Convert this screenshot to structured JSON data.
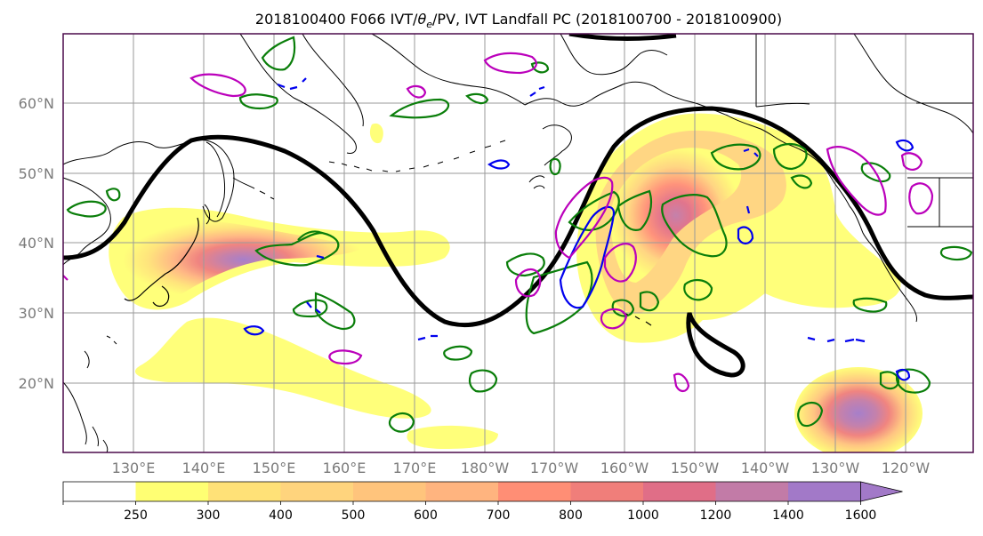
{
  "map": {
    "title": "2018100400 F066 IVT/θe/PV, IVT Landfall PC (2018100700 - 2018100900)",
    "title_parts": {
      "prefix": "2018100400 F066 IVT/",
      "theta": "θ",
      "subscript": "e",
      "suffix": "/PV, IVT Landfall PC (2018100700 - 2018100900)"
    },
    "lat_labels": [
      "60°N",
      "50°N",
      "40°N",
      "30°N",
      "20°N"
    ],
    "lon_labels": [
      "130°E",
      "140°E",
      "150°E",
      "160°E",
      "170°E",
      "180°W",
      "170°W",
      "160°W",
      "150°W",
      "140°W",
      "130°W",
      "120°W"
    ],
    "colors": {
      "plot_border": "#4b0b4b",
      "grid": "#9a9a9a",
      "coast": "#000000",
      "theta_contour": "#000000",
      "green_contour": "#0a7e0a",
      "blue_contour": "#0000ee",
      "magenta_contour": "#bb00bb",
      "tick_label": "#7a7a7a"
    }
  },
  "colorbar": {
    "levels": [
      250,
      300,
      400,
      500,
      600,
      700,
      800,
      1000,
      1200,
      1400,
      1600
    ],
    "tick_labels": [
      "250",
      "300",
      "400",
      "500",
      "600",
      "700",
      "800",
      "1000",
      "1200",
      "1400",
      "1600"
    ],
    "colors": [
      "#ffffff",
      "#ffff73",
      "#ffe177",
      "#ffd47d",
      "#ffc47c",
      "#ffb47f",
      "#ff8e75",
      "#f07e7a",
      "#e06e87",
      "#c27ba7",
      "#a279c8"
    ]
  }
}
